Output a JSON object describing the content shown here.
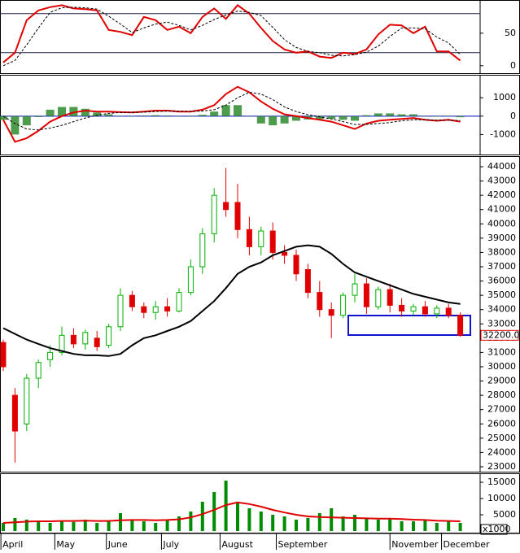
{
  "chart_data": [
    {
      "type": "line",
      "ylim": [
        -9,
        101
      ],
      "yticks": [
        0,
        50
      ],
      "levels": [
        80,
        20
      ],
      "series": [
        {
          "color": "#e00000",
          "values": [
            5,
            20,
            70,
            85,
            90,
            93,
            88,
            87,
            85,
            55,
            52,
            47,
            75,
            70,
            55,
            60,
            50,
            75,
            88,
            72,
            93,
            80,
            58,
            38,
            25,
            20,
            22,
            14,
            12,
            20,
            18,
            25,
            48,
            63,
            62,
            50,
            60,
            22,
            22,
            8
          ]
        },
        {
          "color": "#000000",
          "dashed": true,
          "values": [
            0,
            8,
            32,
            58,
            82,
            89,
            90,
            89,
            87,
            76,
            64,
            51,
            58,
            64,
            67,
            62,
            55,
            62,
            71,
            78,
            84,
            82,
            77,
            59,
            40,
            28,
            22,
            20,
            16,
            15,
            17,
            21,
            30,
            45,
            58,
            58,
            57,
            44,
            35,
            17
          ]
        }
      ]
    },
    {
      "type": "macd",
      "ylim": [
        -2000,
        2250
      ],
      "yticks": [
        1000,
        0,
        -1000
      ],
      "baseline": 0,
      "histogram": [
        -200,
        -1000,
        -500,
        -50,
        350,
        500,
        500,
        400,
        200,
        100,
        20,
        0,
        30,
        50,
        30,
        -20,
        -10,
        70,
        250,
        600,
        600,
        0,
        -400,
        -500,
        -400,
        -250,
        -180,
        -160,
        -150,
        -200,
        -250,
        50,
        150,
        150,
        100,
        100,
        0,
        -30,
        20,
        -60
      ],
      "series": [
        {
          "color": "#e00000",
          "values": [
            -200,
            -1400,
            -1200,
            -800,
            -300,
            0,
            200,
            300,
            250,
            250,
            220,
            200,
            250,
            300,
            300,
            250,
            250,
            350,
            600,
            1200,
            1600,
            1300,
            800,
            400,
            100,
            0,
            -100,
            -200,
            -300,
            -500,
            -700,
            -400,
            -250,
            -200,
            -150,
            -100,
            -200,
            -250,
            -200,
            -300
          ]
        },
        {
          "color": "#000000",
          "dashed": true,
          "values": [
            0,
            -400,
            -700,
            -750,
            -650,
            -500,
            -300,
            -100,
            50,
            150,
            200,
            200,
            220,
            250,
            270,
            270,
            260,
            280,
            350,
            600,
            1000,
            1300,
            1200,
            900,
            500,
            250,
            80,
            -40,
            -150,
            -300,
            -450,
            -450,
            -400,
            -350,
            -250,
            -200,
            -200,
            -220,
            -220,
            -240
          ]
        }
      ]
    },
    {
      "type": "candlestick",
      "ylim": [
        22770,
        44740
      ],
      "yticks": [
        23000,
        24000,
        25000,
        26000,
        27000,
        28000,
        29000,
        30000,
        31000,
        32000,
        33000,
        34000,
        35000,
        36000,
        37000,
        38000,
        39000,
        40000,
        41000,
        42000,
        43000,
        44000
      ],
      "open": [
        31700,
        28000,
        26000,
        29200,
        30500,
        31000,
        32200,
        31600,
        32000,
        31500,
        32800,
        35000,
        34200,
        33800,
        34200,
        33900,
        35200,
        37000,
        39300,
        41500,
        41500,
        39600,
        38400,
        39500,
        38000,
        37800,
        36800,
        35200,
        34000,
        33600,
        35000,
        35800,
        34200,
        35400,
        34300,
        33900,
        34200,
        33700,
        34100,
        33600
      ],
      "high": [
        31900,
        28500,
        29500,
        30500,
        31500,
        32800,
        32700,
        32600,
        32500,
        33000,
        35500,
        35300,
        34500,
        34600,
        34800,
        35500,
        37500,
        39700,
        42500,
        43900,
        42800,
        40500,
        39800,
        40100,
        38500,
        38200,
        37200,
        36000,
        34500,
        35200,
        36500,
        36200,
        35600,
        35800,
        34800,
        34400,
        34600,
        34300,
        34400,
        33800
      ],
      "low": [
        29700,
        23300,
        25500,
        28500,
        30000,
        30800,
        31300,
        31200,
        31100,
        31300,
        32500,
        33900,
        33400,
        33300,
        33500,
        33800,
        35000,
        36500,
        38700,
        40500,
        39000,
        37800,
        37800,
        37500,
        37200,
        36000,
        34800,
        33500,
        32000,
        33400,
        34500,
        33700,
        34000,
        33800,
        33500,
        33600,
        33500,
        33400,
        33400,
        32100
      ],
      "close": [
        30000,
        25500,
        29200,
        30300,
        31000,
        32200,
        31600,
        32400,
        31400,
        32800,
        35000,
        34200,
        33800,
        34200,
        33900,
        35200,
        37000,
        39300,
        42000,
        41000,
        39600,
        38400,
        39500,
        38000,
        37800,
        36500,
        35200,
        34000,
        33600,
        35000,
        35800,
        34200,
        35400,
        34300,
        33900,
        34200,
        33700,
        34100,
        33600,
        32200
      ],
      "up_color": "#00b000",
      "down_color": "#e00000",
      "ma": {
        "color": "#000000",
        "values": [
          32700,
          32300,
          31900,
          31600,
          31300,
          31100,
          30900,
          30800,
          30800,
          30750,
          30900,
          31500,
          32000,
          32200,
          32500,
          32800,
          33200,
          33900,
          34600,
          35500,
          36500,
          37000,
          37300,
          37800,
          38100,
          38400,
          38500,
          38400,
          37900,
          37200,
          36600,
          36300,
          36000,
          35700,
          35400,
          35100,
          34900,
          34700,
          34500,
          34400
        ]
      },
      "last_label": {
        "value": 32200,
        "label": "32200.00"
      }
    },
    {
      "type": "bar",
      "ylim": [
        0,
        17750
      ],
      "yticks": [
        5000,
        10000,
        15000
      ],
      "ylabel": "x1000",
      "color": "#008c00",
      "values": [
        2500,
        4000,
        3500,
        3000,
        2500,
        3000,
        2800,
        3500,
        2500,
        3000,
        5500,
        3500,
        3000,
        2500,
        3500,
        4500,
        6000,
        9000,
        12000,
        15500,
        9000,
        7000,
        6000,
        5000,
        4500,
        3500,
        4000,
        5500,
        7000,
        4500,
        5000,
        4000,
        3500,
        4000,
        3000,
        3000,
        3500,
        2500,
        3000,
        2500
      ],
      "ma": {
        "color": "#e00000",
        "values": [
          2500,
          2700,
          2900,
          3000,
          3000,
          3100,
          3100,
          3200,
          3100,
          3100,
          3300,
          3400,
          3400,
          3300,
          3400,
          3600,
          4200,
          5200,
          6500,
          8000,
          8800,
          8300,
          7500,
          6500,
          5700,
          5000,
          4500,
          4300,
          4200,
          4100,
          4000,
          3900,
          3800,
          3800,
          3700,
          3500,
          3400,
          3200,
          3100,
          3000
        ]
      },
      "xticks": [
        {
          "value": -0.2,
          "label": "April"
        },
        {
          "value": 4.4,
          "label": "May"
        },
        {
          "value": 8.8,
          "label": "June"
        },
        {
          "value": 13.5,
          "label": "July"
        },
        {
          "value": 18.5,
          "label": "August"
        },
        {
          "value": 23.3,
          "label": "September"
        },
        {
          "value": 33,
          "label": "November"
        },
        {
          "value": 37.4,
          "label": "December"
        }
      ]
    }
  ]
}
